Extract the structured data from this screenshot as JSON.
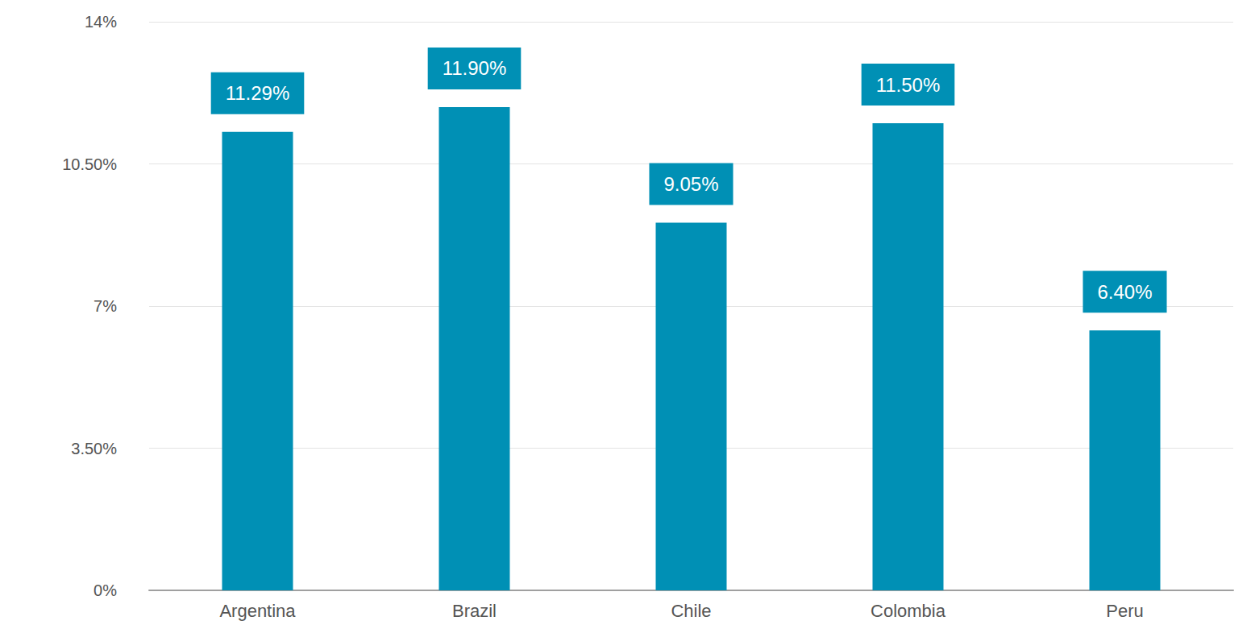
{
  "chart_data": {
    "type": "bar",
    "categories": [
      "Argentina",
      "Brazil",
      "Chile",
      "Colombia",
      "Peru"
    ],
    "values": [
      11.29,
      11.9,
      9.05,
      11.5,
      6.4
    ],
    "value_labels": [
      "11.29%",
      "11.90%",
      "9.05%",
      "11.50%",
      "6.40%"
    ],
    "data_labels": true,
    "color": "#0090b5",
    "ylim": [
      0,
      14
    ],
    "yticks": [
      {
        "value": 0,
        "label": "0%"
      },
      {
        "value": 3.5,
        "label": "3.50%"
      },
      {
        "value": 7,
        "label": "7%"
      },
      {
        "value": 10.5,
        "label": "10.50%"
      },
      {
        "value": 14,
        "label": "14%"
      }
    ],
    "grid": true
  }
}
